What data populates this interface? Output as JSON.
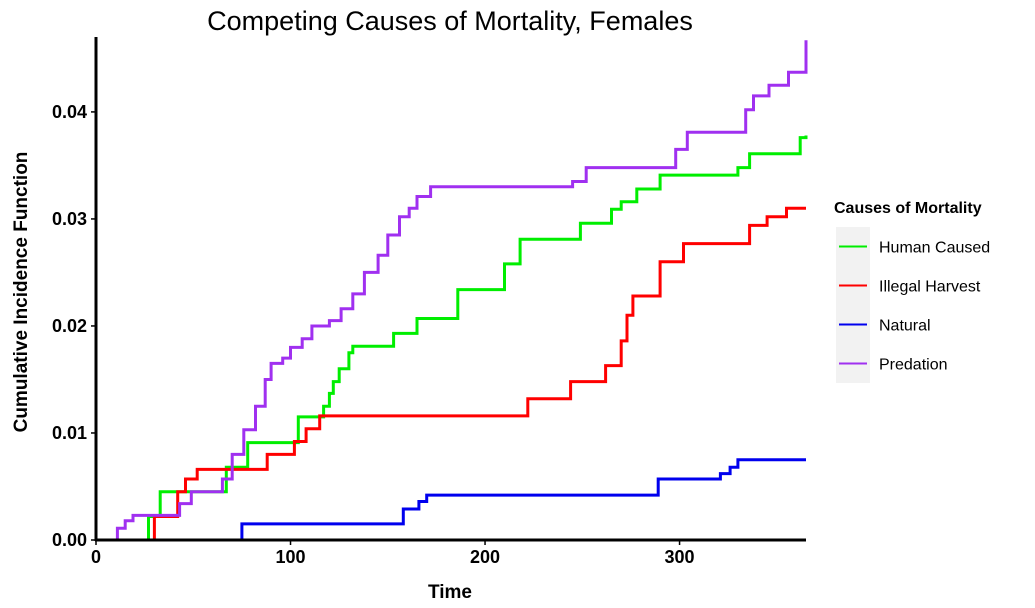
{
  "chart_data": {
    "type": "line",
    "title": "Competing Causes of Mortality, Females",
    "xlabel": "Time",
    "ylabel": "Cumulative Incidence Function",
    "xlim": [
      0,
      365
    ],
    "ylim": [
      0,
      0.047
    ],
    "x_ticks": [
      0,
      100,
      200,
      300
    ],
    "y_ticks": [
      0,
      0.01,
      0.02,
      0.03,
      0.04
    ],
    "x_tick_labels": [
      "0",
      "100",
      "200",
      "300"
    ],
    "y_tick_labels": [
      "0.00",
      "0.01",
      "0.02",
      "0.03",
      "0.04"
    ],
    "grid": false,
    "step": true,
    "legend": {
      "title": "Causes of Mortality",
      "position": "right"
    },
    "series": [
      {
        "name": "Human Caused",
        "color": "#00ee00",
        "points": [
          [
            0,
            0
          ],
          [
            27,
            0
          ],
          [
            27,
            0.0022
          ],
          [
            33,
            0.0045
          ],
          [
            65,
            0.0045
          ],
          [
            67,
            0.0068
          ],
          [
            78,
            0.0091
          ],
          [
            100,
            0.0091
          ],
          [
            104,
            0.0115
          ],
          [
            115,
            0.0115
          ],
          [
            117,
            0.0125
          ],
          [
            120,
            0.0137
          ],
          [
            122,
            0.0148
          ],
          [
            125,
            0.016
          ],
          [
            130,
            0.0175
          ],
          [
            132,
            0.0181
          ],
          [
            150,
            0.0181
          ],
          [
            153,
            0.0193
          ],
          [
            163,
            0.0193
          ],
          [
            165,
            0.0207
          ],
          [
            180,
            0.0207
          ],
          [
            186,
            0.0234
          ],
          [
            200,
            0.0234
          ],
          [
            210,
            0.0258
          ],
          [
            218,
            0.0281
          ],
          [
            245,
            0.0281
          ],
          [
            249,
            0.0296
          ],
          [
            258,
            0.0296
          ],
          [
            265,
            0.0309
          ],
          [
            270,
            0.0316
          ],
          [
            275,
            0.0316
          ],
          [
            278,
            0.0328
          ],
          [
            287,
            0.0328
          ],
          [
            290,
            0.0341
          ],
          [
            328,
            0.0341
          ],
          [
            330,
            0.0348
          ],
          [
            336,
            0.0361
          ],
          [
            354,
            0.0361
          ],
          [
            362,
            0.0376
          ],
          [
            365,
            0.0378
          ]
        ]
      },
      {
        "name": "Illegal Harvest",
        "color": "#ff0000",
        "points": [
          [
            0,
            0
          ],
          [
            30,
            0
          ],
          [
            30,
            0.0022
          ],
          [
            39,
            0.0022
          ],
          [
            42,
            0.0045
          ],
          [
            46,
            0.0057
          ],
          [
            52,
            0.0066
          ],
          [
            83,
            0.0066
          ],
          [
            88,
            0.008
          ],
          [
            98,
            0.008
          ],
          [
            102,
            0.0092
          ],
          [
            105,
            0.0092
          ],
          [
            108,
            0.0104
          ],
          [
            112,
            0.0104
          ],
          [
            115,
            0.0116
          ],
          [
            219,
            0.0116
          ],
          [
            222,
            0.0132
          ],
          [
            241,
            0.0132
          ],
          [
            244,
            0.0148
          ],
          [
            258,
            0.0148
          ],
          [
            262,
            0.0163
          ],
          [
            267,
            0.0163
          ],
          [
            270,
            0.0186
          ],
          [
            273,
            0.021
          ],
          [
            276,
            0.0228
          ],
          [
            287,
            0.0228
          ],
          [
            290,
            0.026
          ],
          [
            298,
            0.026
          ],
          [
            302,
            0.0277
          ],
          [
            333,
            0.0277
          ],
          [
            336,
            0.0294
          ],
          [
            341,
            0.0294
          ],
          [
            345,
            0.0302
          ],
          [
            355,
            0.031
          ],
          [
            365,
            0.031
          ]
        ]
      },
      {
        "name": "Natural",
        "color": "#0000ee",
        "points": [
          [
            0,
            0
          ],
          [
            73,
            0
          ],
          [
            75,
            0.0015
          ],
          [
            154,
            0.0015
          ],
          [
            158,
            0.0029
          ],
          [
            162,
            0.0029
          ],
          [
            166,
            0.0036
          ],
          [
            170,
            0.0042
          ],
          [
            285,
            0.0042
          ],
          [
            289,
            0.0057
          ],
          [
            317,
            0.0057
          ],
          [
            321,
            0.0062
          ],
          [
            326,
            0.0068
          ],
          [
            330,
            0.0075
          ],
          [
            365,
            0.0075
          ]
        ]
      },
      {
        "name": "Predation",
        "color": "#a030f0",
        "points": [
          [
            8,
            0
          ],
          [
            11,
            0.0011
          ],
          [
            15,
            0.0018
          ],
          [
            19,
            0.0023
          ],
          [
            32,
            0.0023
          ],
          [
            37,
            0.0023
          ],
          [
            43,
            0.0034
          ],
          [
            49,
            0.0045
          ],
          [
            63,
            0.0045
          ],
          [
            65,
            0.0057
          ],
          [
            70,
            0.008
          ],
          [
            76,
            0.0103
          ],
          [
            82,
            0.0125
          ],
          [
            87,
            0.015
          ],
          [
            90,
            0.0165
          ],
          [
            96,
            0.017
          ],
          [
            100,
            0.018
          ],
          [
            106,
            0.0188
          ],
          [
            111,
            0.02
          ],
          [
            120,
            0.0205
          ],
          [
            126,
            0.0216
          ],
          [
            132,
            0.023
          ],
          [
            138,
            0.025
          ],
          [
            145,
            0.0266
          ],
          [
            150,
            0.0285
          ],
          [
            156,
            0.0302
          ],
          [
            161,
            0.031
          ],
          [
            165,
            0.0321
          ],
          [
            172,
            0.033
          ],
          [
            245,
            0.0335
          ],
          [
            252,
            0.0348
          ],
          [
            294,
            0.0348
          ],
          [
            298,
            0.0365
          ],
          [
            304,
            0.0381
          ],
          [
            329,
            0.0381
          ],
          [
            334,
            0.0402
          ],
          [
            338,
            0.0415
          ],
          [
            346,
            0.0425
          ],
          [
            356,
            0.0437
          ],
          [
            365,
            0.0467
          ]
        ]
      }
    ]
  }
}
